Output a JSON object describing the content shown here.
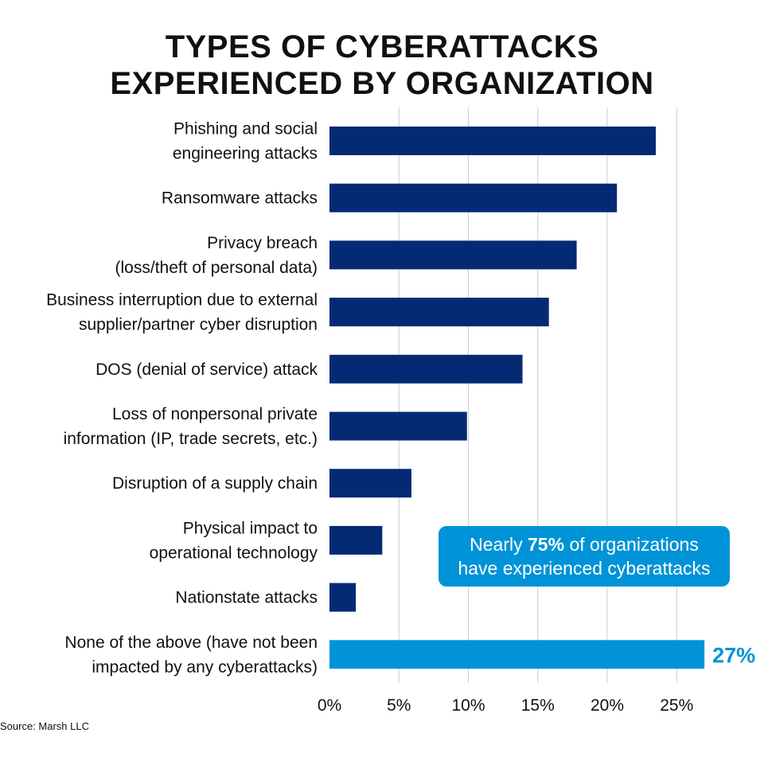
{
  "title": {
    "line1": "TYPES OF CYBERATTACKS",
    "line2": "EXPERIENCED BY ORGANIZATION"
  },
  "source": "Source: Marsh LLC",
  "callout": {
    "prefix": "Nearly ",
    "highlight": "75%",
    "suffix": " of organizations",
    "line2": "have experienced cyberattacks"
  },
  "colors": {
    "bar": "#052a74",
    "highlight_bar": "#0093d7",
    "grid": "#cccccc"
  },
  "chart_data": {
    "type": "bar",
    "orientation": "horizontal",
    "categories": [
      [
        "Phishing and social",
        "engineering attacks"
      ],
      [
        "Ransomware attacks"
      ],
      [
        "Privacy breach",
        "(loss/theft of personal data)"
      ],
      [
        "Business interruption due to external",
        "supplier/partner cyber disruption"
      ],
      [
        "DOS (denial of service) attack"
      ],
      [
        "Loss of nonpersonal private",
        "information (IP, trade secrets, etc.)"
      ],
      [
        "Disruption of a supply chain"
      ],
      [
        "Physical impact to",
        "operational technology"
      ],
      [
        "Nationstate attacks"
      ],
      [
        "None of the above (have not been",
        "impacted by any cyberattacks)"
      ]
    ],
    "values": [
      23.5,
      20.7,
      17.8,
      15.8,
      13.9,
      9.9,
      5.9,
      3.8,
      1.9,
      27
    ],
    "highlight_index": 9,
    "data_labels": {
      "9": "27%"
    },
    "xlim": [
      0,
      27
    ],
    "xticks": [
      0,
      5,
      10,
      15,
      20,
      25
    ],
    "xtick_labels": [
      "0%",
      "5%",
      "10%",
      "15%",
      "20%",
      "25%"
    ],
    "grid": true,
    "title": "TYPES OF CYBERATTACKS EXPERIENCED BY ORGANIZATION"
  }
}
